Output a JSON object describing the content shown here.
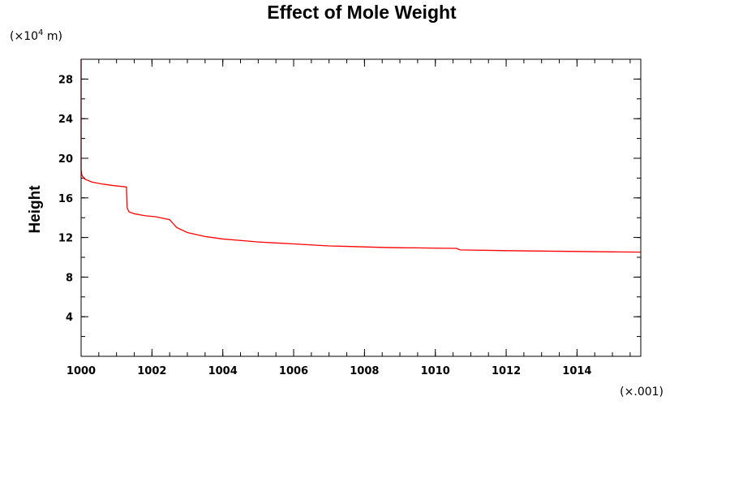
{
  "chart_data": {
    "type": "line",
    "title": "Effect of Mole Weight",
    "xlabel": "",
    "ylabel": "Height",
    "y_multiplier": {
      "prefix": "(×10",
      "exponent": "4",
      "suffix": " m)"
    },
    "x_multiplier": "(×.001)",
    "xlim": [
      1000,
      1015.8
    ],
    "ylim": [
      0,
      30
    ],
    "x_ticks": [
      1000,
      1002,
      1004,
      1006,
      1008,
      1010,
      1012,
      1014
    ],
    "x_tick_labels": [
      "1000",
      "1002",
      "1004",
      "1006",
      "1008",
      "1010",
      "1012",
      "1014"
    ],
    "x_minor_step": 0.5,
    "y_ticks": [
      4,
      8,
      12,
      16,
      20,
      24,
      28
    ],
    "y_tick_labels": [
      "4",
      "8",
      "12",
      "16",
      "20",
      "24",
      "28"
    ],
    "y_minor_step": 2,
    "grid": false,
    "series": [
      {
        "color": "#ff0000",
        "x": [
          1000.0,
          1000.0,
          1000.02,
          1000.1,
          1000.3,
          1000.6,
          1000.9,
          1001.28,
          1001.3,
          1001.35,
          1001.5,
          1001.8,
          1002.1,
          1002.5,
          1002.55,
          1002.7,
          1003.0,
          1003.5,
          1004.0,
          1004.5,
          1005.0,
          1005.5,
          1006.0,
          1006.5,
          1007.0,
          1007.5,
          1008.0,
          1008.5,
          1009.0,
          1009.5,
          1010.0,
          1010.6,
          1010.7,
          1011.0,
          1011.5,
          1012.0,
          1012.5,
          1013.0,
          1013.5,
          1014.0,
          1014.5,
          1015.0,
          1015.8
        ],
        "y": [
          30.0,
          18.9,
          18.3,
          17.9,
          17.6,
          17.4,
          17.25,
          17.1,
          15.0,
          14.6,
          14.4,
          14.2,
          14.1,
          13.8,
          13.6,
          13.0,
          12.5,
          12.1,
          11.85,
          11.7,
          11.55,
          11.45,
          11.35,
          11.25,
          11.15,
          11.1,
          11.05,
          11.0,
          10.97,
          10.95,
          10.92,
          10.9,
          10.75,
          10.73,
          10.7,
          10.67,
          10.65,
          10.63,
          10.61,
          10.59,
          10.57,
          10.55,
          10.52
        ]
      }
    ]
  }
}
